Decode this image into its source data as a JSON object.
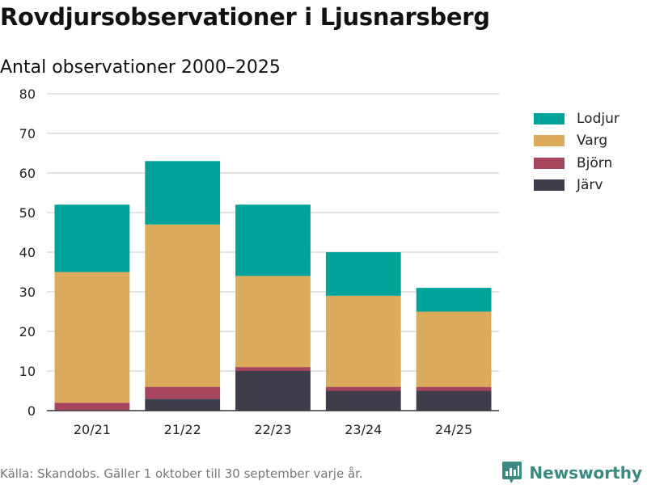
{
  "chart_data": {
    "type": "bar",
    "stacked": true,
    "title": "Rovdjursobservationer i Ljusnarsberg",
    "subtitle": "Antal observationer 2000–2025",
    "categories": [
      "20/21",
      "21/22",
      "22/23",
      "23/24",
      "24/25"
    ],
    "ylim": [
      0,
      80
    ],
    "yticks": [
      0,
      10,
      20,
      30,
      40,
      50,
      60,
      70,
      80
    ],
    "grid": true,
    "legend_position": "right",
    "series": [
      {
        "name": "Järv",
        "color": "#3f3d4b",
        "values": [
          0,
          3,
          10,
          5,
          5
        ]
      },
      {
        "name": "Björn",
        "color": "#a7455f",
        "values": [
          2,
          3,
          1,
          1,
          1
        ]
      },
      {
        "name": "Varg",
        "color": "#dbab5b",
        "values": [
          33,
          41,
          23,
          23,
          19
        ]
      },
      {
        "name": "Lodjur",
        "color": "#00a39a",
        "values": [
          17,
          16,
          18,
          11,
          6
        ]
      }
    ],
    "legend_order": [
      "Lodjur",
      "Varg",
      "Björn",
      "Järv"
    ]
  },
  "footer": {
    "source": "Källa: Skandobs. Gäller 1 oktober till 30 september varje år.",
    "brand": "Newsworthy"
  }
}
